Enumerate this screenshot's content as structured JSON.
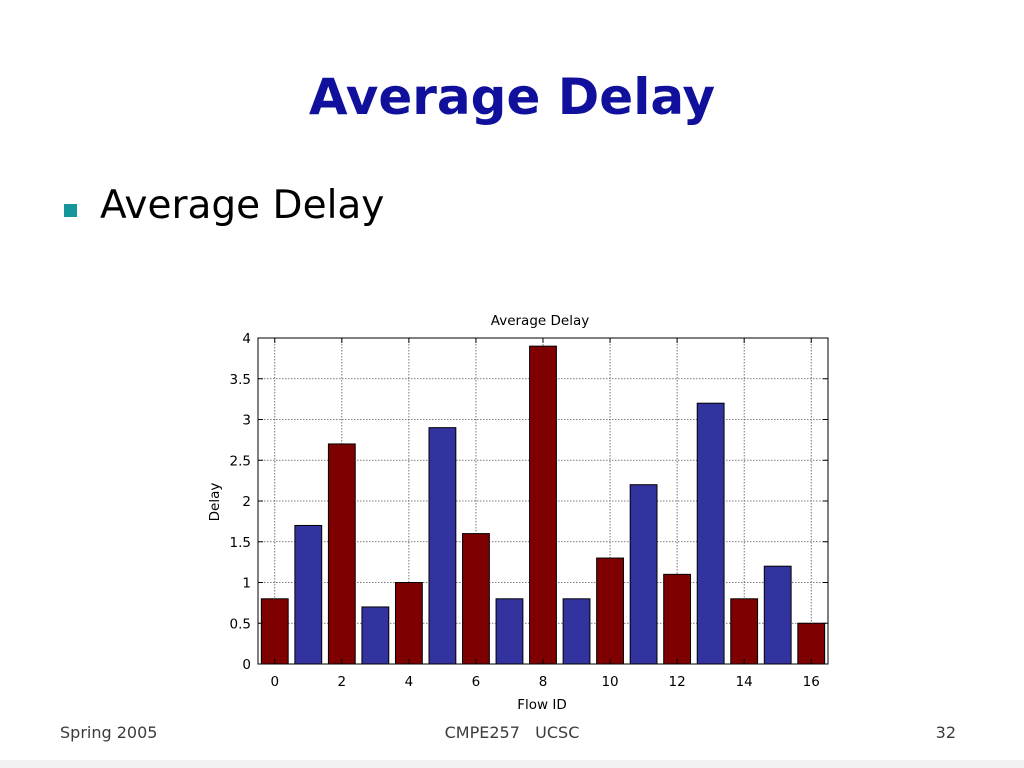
{
  "slide": {
    "title": "Average Delay",
    "bullets": [
      "Average Delay"
    ]
  },
  "chart_data": {
    "type": "bar",
    "title": "Average Delay",
    "xlabel": "Flow ID",
    "ylabel": "Delay",
    "x": [
      0,
      1,
      2,
      3,
      4,
      5,
      6,
      7,
      8,
      9,
      10,
      11,
      12,
      13,
      14,
      15,
      16
    ],
    "values": [
      0.8,
      1.7,
      2.7,
      0.7,
      1.0,
      2.9,
      1.6,
      0.8,
      3.9,
      0.8,
      1.3,
      2.2,
      1.1,
      3.2,
      0.8,
      1.2,
      0.5
    ],
    "bar_colors": [
      "#7f0000",
      "#3333a0"
    ],
    "xlim": [
      -0.5,
      16.5
    ],
    "ylim": [
      0,
      4
    ],
    "xticks": [
      "0",
      "2",
      "4",
      "6",
      "8",
      "10",
      "12",
      "14",
      "16"
    ],
    "yticks": [
      "0",
      "0.5",
      "1",
      "1.5",
      "2",
      "2.5",
      "3",
      "3.5",
      "4"
    ],
    "grid": true
  },
  "footer": {
    "left": "Spring 2005",
    "center": "CMPE257   UCSC",
    "right": "32"
  },
  "colors": {
    "title": "#10109c",
    "bullet": "#16969b"
  }
}
